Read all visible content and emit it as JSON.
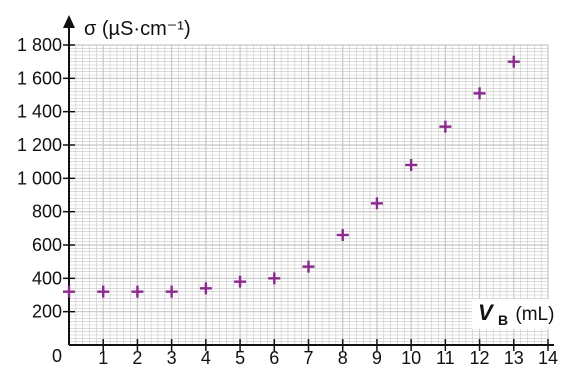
{
  "chart_data": {
    "type": "scatter",
    "x_label_var": "V",
    "x_label_sub": "B",
    "x_label_unit": "(mL)",
    "y_label": "σ (µS·cm⁻¹)",
    "x": [
      0,
      1,
      2,
      3,
      4,
      5,
      6,
      7,
      8,
      9,
      10,
      11,
      12,
      13
    ],
    "y": [
      320,
      320,
      320,
      320,
      340,
      380,
      400,
      470,
      660,
      850,
      1080,
      1310,
      1510,
      1700
    ],
    "xlim": [
      0,
      14
    ],
    "ylim": [
      0,
      1800
    ],
    "x_ticks": [
      1,
      2,
      3,
      4,
      5,
      6,
      7,
      8,
      9,
      10,
      11,
      12,
      13,
      14
    ],
    "y_ticks": [
      200,
      400,
      600,
      800,
      1000,
      1200,
      1400,
      1600,
      1800
    ],
    "x_tick_labels": [
      "1",
      "2",
      "3",
      "4",
      "5",
      "6",
      "7",
      "8",
      "9",
      "10",
      "11",
      "12",
      "13",
      "14"
    ],
    "y_tick_labels": [
      "200",
      "400",
      "600",
      "800",
      "1 000",
      "1 200",
      "1 400",
      "1 600",
      "1 800"
    ],
    "origin_label": "0",
    "grid": true,
    "marker": "cross",
    "marker_color": "#8b2a8e",
    "grid_color": "#c7c7c7",
    "axis_color": "#111111"
  }
}
